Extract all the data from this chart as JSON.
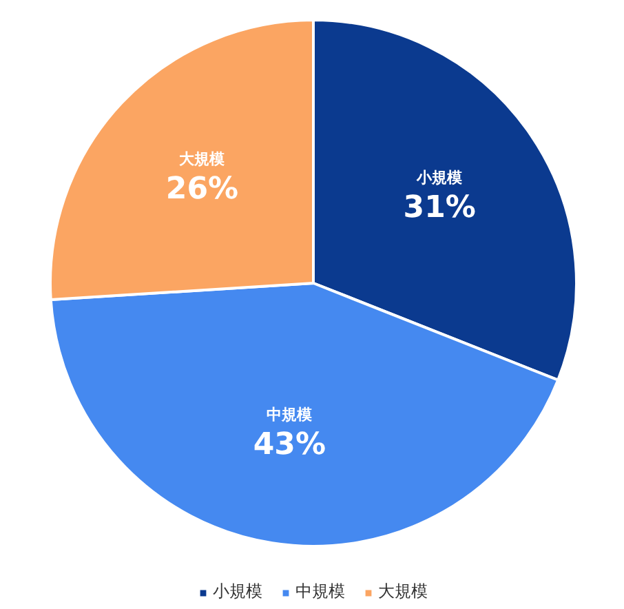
{
  "chart_data": {
    "type": "pie",
    "categories": [
      "小規模",
      "中規模",
      "大規模"
    ],
    "values": [
      31,
      43,
      26
    ],
    "colors": [
      "#0b3a8f",
      "#4589f0",
      "#fba562"
    ],
    "value_labels": [
      "31%",
      "43%",
      "26%"
    ],
    "legend": "bottom"
  }
}
